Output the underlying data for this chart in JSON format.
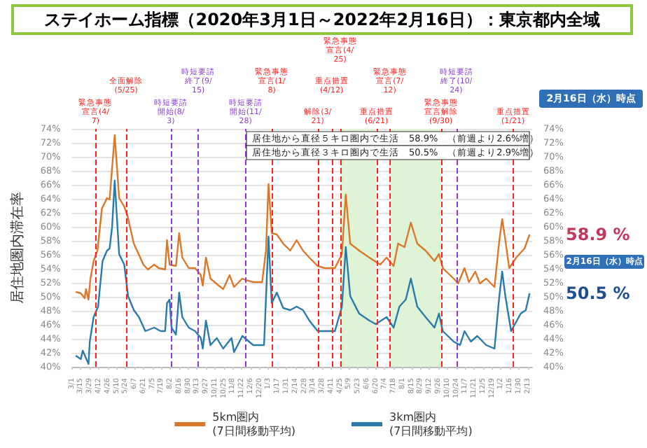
{
  "chart_data": {
    "type": "line",
    "title": "ステイホーム指標（2020年3月1日～2022年2月16日）：東京都内全域",
    "ylabel": "居住地圏内滞在率",
    "xlim": [
      "2020-03-01",
      "2022-02-20"
    ],
    "ylim": [
      40,
      74
    ],
    "yticks": [
      {
        "value": 40,
        "label": "40%"
      },
      {
        "value": 42,
        "label": "42%"
      },
      {
        "value": 44,
        "label": "44%"
      },
      {
        "value": 46,
        "label": "46%"
      },
      {
        "value": 48,
        "label": "48%"
      },
      {
        "value": 50,
        "label": "50%"
      },
      {
        "value": 52,
        "label": "52%"
      },
      {
        "value": 54,
        "label": "54%"
      },
      {
        "value": 56,
        "label": "56%"
      },
      {
        "value": 58,
        "label": "58%"
      },
      {
        "value": 60,
        "label": "60%"
      },
      {
        "value": 62,
        "label": "62%"
      },
      {
        "value": 64,
        "label": "64%"
      },
      {
        "value": 66,
        "label": "66%"
      },
      {
        "value": 68,
        "label": "68%"
      },
      {
        "value": 70,
        "label": "70%"
      },
      {
        "value": 72,
        "label": "72%"
      },
      {
        "value": 74,
        "label": "74%"
      }
    ],
    "y2lim": [
      40,
      74
    ],
    "y2ticks": [
      {
        "value": 40,
        "label": "40%"
      },
      {
        "value": 42,
        "label": "42%"
      },
      {
        "value": 44,
        "label": "44%"
      },
      {
        "value": 46,
        "label": "46%"
      },
      {
        "value": 48,
        "label": "48%"
      },
      {
        "value": 50,
        "label": "50%"
      },
      {
        "value": 52,
        "label": "52%"
      },
      {
        "value": 54,
        "label": "54%"
      },
      {
        "value": 56,
        "label": "56%"
      },
      {
        "value": 58,
        "label": "58%"
      },
      {
        "value": 60,
        "label": "60%"
      },
      {
        "value": 62,
        "label": "62%"
      },
      {
        "value": 64,
        "label": "64%"
      },
      {
        "value": 66,
        "label": "66%"
      },
      {
        "value": 68,
        "label": "68%"
      },
      {
        "value": 70,
        "label": "70%"
      },
      {
        "value": 72,
        "label": "72%"
      },
      {
        "value": 74,
        "label": "74%"
      }
    ],
    "xticks": [
      {
        "value": "2020-03-01",
        "label": "3/1"
      },
      {
        "value": "2020-03-15",
        "label": "3/15"
      },
      {
        "value": "2020-03-29",
        "label": "3/29"
      },
      {
        "value": "2020-04-12",
        "label": "4/12"
      },
      {
        "value": "2020-04-26",
        "label": "4/26"
      },
      {
        "value": "2020-05-10",
        "label": "5/10"
      },
      {
        "value": "2020-05-24",
        "label": "5/24"
      },
      {
        "value": "2020-06-07",
        "label": "6/7"
      },
      {
        "value": "2020-06-21",
        "label": "6/21"
      },
      {
        "value": "2020-07-05",
        "label": "7/5"
      },
      {
        "value": "2020-07-19",
        "label": "7/19"
      },
      {
        "value": "2020-08-02",
        "label": "8/2"
      },
      {
        "value": "2020-08-16",
        "label": "8/16"
      },
      {
        "value": "2020-08-30",
        "label": "8/30"
      },
      {
        "value": "2020-09-13",
        "label": "9/13"
      },
      {
        "value": "2020-09-27",
        "label": "9/27"
      },
      {
        "value": "2020-10-11",
        "label": "10/11"
      },
      {
        "value": "2020-10-25",
        "label": "10/25"
      },
      {
        "value": "2020-11-08",
        "label": "11/8"
      },
      {
        "value": "2020-11-22",
        "label": "11/22"
      },
      {
        "value": "2020-12-06",
        "label": "12/6"
      },
      {
        "value": "2020-12-20",
        "label": "12/20"
      },
      {
        "value": "2021-01-03",
        "label": "1/3"
      },
      {
        "value": "2021-01-17",
        "label": "1/17"
      },
      {
        "value": "2021-01-31",
        "label": "1/31"
      },
      {
        "value": "2021-02-14",
        "label": "2/14"
      },
      {
        "value": "2021-02-28",
        "label": "2/28"
      },
      {
        "value": "2021-03-14",
        "label": "3/14"
      },
      {
        "value": "2021-03-28",
        "label": "3/28"
      },
      {
        "value": "2021-04-11",
        "label": "4/11"
      },
      {
        "value": "2021-04-25",
        "label": "4/25"
      },
      {
        "value": "2021-05-09",
        "label": "5/9"
      },
      {
        "value": "2021-05-23",
        "label": "5/23"
      },
      {
        "value": "2021-06-06",
        "label": "6/6"
      },
      {
        "value": "2021-06-20",
        "label": "6/20"
      },
      {
        "value": "2021-07-04",
        "label": "7/4"
      },
      {
        "value": "2021-07-18",
        "label": "7/18"
      },
      {
        "value": "2021-08-01",
        "label": "8/1"
      },
      {
        "value": "2021-08-15",
        "label": "8/15"
      },
      {
        "value": "2021-08-29",
        "label": "8/29"
      },
      {
        "value": "2021-09-12",
        "label": "9/12"
      },
      {
        "value": "2021-09-26",
        "label": "9/26"
      },
      {
        "value": "2021-10-10",
        "label": "10/10"
      },
      {
        "value": "2021-10-24",
        "label": "10/24"
      },
      {
        "value": "2021-11-07",
        "label": "11/7"
      },
      {
        "value": "2021-11-21",
        "label": "11/21"
      },
      {
        "value": "2021-12-05",
        "label": "12/5"
      },
      {
        "value": "2021-12-19",
        "label": "12/19"
      },
      {
        "value": "2022-01-02",
        "label": "1/2"
      },
      {
        "value": "2022-01-16",
        "label": "1/16"
      },
      {
        "value": "2022-01-30",
        "label": "1/30"
      },
      {
        "value": "2022-02-13",
        "label": "2/13"
      }
    ],
    "grid": "y",
    "legend": "bottom",
    "marker": "none",
    "series": [
      {
        "name": "5km圏内\n(7日間移動平均)",
        "color": "#d9772b",
        "x": [
          "2020-03-07",
          "2020-03-15",
          "2020-03-21",
          "2020-03-23",
          "2020-03-27",
          "2020-03-30",
          "2020-04-04",
          "2020-04-10",
          "2020-04-17",
          "2020-04-25",
          "2020-04-29",
          "2020-05-01",
          "2020-05-07",
          "2020-05-14",
          "2020-05-22",
          "2020-05-27",
          "2020-06-01",
          "2020-06-06",
          "2020-06-11",
          "2020-06-21",
          "2020-06-28",
          "2020-07-08",
          "2020-07-15",
          "2020-07-25",
          "2020-07-28",
          "2020-08-01",
          "2020-08-11",
          "2020-08-16",
          "2020-08-21",
          "2020-08-31",
          "2020-09-10",
          "2020-09-19",
          "2020-09-22",
          "2020-09-27",
          "2020-10-04",
          "2020-10-17",
          "2020-10-24",
          "2020-11-03",
          "2020-11-10",
          "2020-11-23",
          "2020-11-28",
          "2020-12-10",
          "2020-12-24",
          "2020-12-30",
          "2021-01-03",
          "2021-01-08",
          "2021-01-16",
          "2021-01-26",
          "2021-02-06",
          "2021-02-16",
          "2021-02-26",
          "2021-03-08",
          "2021-03-21",
          "2021-04-01",
          "2021-04-17",
          "2021-04-28",
          "2021-05-04",
          "2021-05-11",
          "2021-05-25",
          "2021-06-10",
          "2021-06-27",
          "2021-07-07",
          "2021-07-18",
          "2021-07-25",
          "2021-08-04",
          "2021-08-14",
          "2021-08-24",
          "2021-09-06",
          "2021-09-20",
          "2021-09-27",
          "2021-10-03",
          "2021-10-20",
          "2021-10-27",
          "2021-11-06",
          "2021-11-13",
          "2021-11-23",
          "2021-11-30",
          "2021-12-10",
          "2021-12-23",
          "2021-12-30",
          "2022-01-04",
          "2022-01-09",
          "2022-01-15",
          "2022-01-26",
          "2022-02-08",
          "2022-02-16"
        ],
        "values": [
          50.7,
          50.5,
          49.8,
          51.1,
          49.6,
          52.6,
          55.1,
          56.6,
          62.6,
          64.1,
          63.9,
          66.1,
          73.1,
          64.1,
          62.9,
          61.6,
          59.6,
          57.6,
          56.6,
          54.6,
          53.9,
          54.6,
          54.1,
          53.9,
          58.1,
          54.6,
          54.4,
          59.1,
          55.6,
          54.1,
          54.1,
          53.1,
          51.6,
          55.6,
          52.6,
          51.6,
          51.1,
          53.1,
          51.4,
          52.6,
          52.4,
          52.1,
          52.1,
          56.6,
          66.1,
          59.1,
          58.9,
          57.6,
          56.6,
          58.1,
          56.6,
          55.6,
          54.4,
          54.1,
          54.1,
          56.1,
          64.6,
          57.6,
          56.6,
          55.6,
          54.6,
          55.6,
          54.4,
          57.6,
          57.1,
          60.6,
          57.6,
          56.6,
          55.1,
          56.1,
          54.1,
          52.6,
          51.9,
          54.1,
          52.1,
          53.6,
          51.9,
          52.6,
          51.4,
          57.6,
          61.1,
          58.1,
          54.1,
          55.6,
          56.9,
          58.9
        ]
      },
      {
        "name": "3km圏内\n(7日間移動平均)",
        "color": "#2a7aa8",
        "x": [
          "2020-03-07",
          "2020-03-15",
          "2020-03-18",
          "2020-03-27",
          "2020-03-29",
          "2020-04-04",
          "2020-04-11",
          "2020-04-18",
          "2020-04-25",
          "2020-04-29",
          "2020-05-03",
          "2020-05-07",
          "2020-05-14",
          "2020-05-22",
          "2020-05-28",
          "2020-06-06",
          "2020-06-14",
          "2020-06-24",
          "2020-07-08",
          "2020-07-18",
          "2020-07-25",
          "2020-07-28",
          "2020-08-01",
          "2020-08-04",
          "2020-08-11",
          "2020-08-16",
          "2020-08-21",
          "2020-08-31",
          "2020-09-10",
          "2020-09-19",
          "2020-09-22",
          "2020-09-27",
          "2020-10-04",
          "2020-10-14",
          "2020-10-24",
          "2020-11-06",
          "2020-11-10",
          "2020-11-23",
          "2020-12-10",
          "2020-12-27",
          "2021-01-03",
          "2021-01-08",
          "2021-01-16",
          "2021-01-26",
          "2021-02-06",
          "2021-02-16",
          "2021-02-26",
          "2021-03-08",
          "2021-03-21",
          "2021-04-04",
          "2021-04-17",
          "2021-04-28",
          "2021-05-04",
          "2021-05-11",
          "2021-05-25",
          "2021-06-10",
          "2021-06-20",
          "2021-07-07",
          "2021-07-18",
          "2021-07-27",
          "2021-08-06",
          "2021-08-14",
          "2021-08-24",
          "2021-09-06",
          "2021-09-20",
          "2021-09-27",
          "2021-10-03",
          "2021-10-20",
          "2021-10-30",
          "2021-11-06",
          "2021-11-16",
          "2021-11-26",
          "2021-12-10",
          "2021-12-23",
          "2021-12-30",
          "2022-01-04",
          "2022-01-09",
          "2022-01-18",
          "2022-02-02",
          "2022-02-10",
          "2022-02-16"
        ],
        "values": [
          41.6,
          41.1,
          42.3,
          40.4,
          43.6,
          47.1,
          48.6,
          55.1,
          56.6,
          56.9,
          60.0,
          66.6,
          56.1,
          54.6,
          50.1,
          48.1,
          47.1,
          45.1,
          45.6,
          45.1,
          45.1,
          49.1,
          49.6,
          45.6,
          44.6,
          50.6,
          47.1,
          45.6,
          45.1,
          44.1,
          42.6,
          46.6,
          43.1,
          44.1,
          42.6,
          44.1,
          42.1,
          44.4,
          43.1,
          43.1,
          58.6,
          49.1,
          50.6,
          48.4,
          48.1,
          48.6,
          48.1,
          46.6,
          45.1,
          45.1,
          45.1,
          48.6,
          57.1,
          50.1,
          47.6,
          46.6,
          46.1,
          47.1,
          45.6,
          48.6,
          49.6,
          52.6,
          48.6,
          47.1,
          45.6,
          47.6,
          45.1,
          43.6,
          43.1,
          45.1,
          43.6,
          44.4,
          43.1,
          42.6,
          49.6,
          53.6,
          50.1,
          45.1,
          47.6,
          48.1,
          50.5
        ]
      }
    ],
    "ref_lines": [
      {
        "axis": "x",
        "value": "2020-04-07",
        "label": "緊急事態宣言(4/7)",
        "color": "#ff2020",
        "line_style": "dashed"
      },
      {
        "axis": "x",
        "value": "2020-05-25",
        "label": "全面解除(5/25)",
        "color": "#ff2020",
        "line_style": "dashed"
      },
      {
        "axis": "x",
        "value": "2020-08-03",
        "label": "時短要請開始(8/3)",
        "color": "#8a3fd1",
        "line_style": "dashed"
      },
      {
        "axis": "x",
        "value": "2020-09-15",
        "label": "時短要請終了(9/15)",
        "color": "#8a3fd1",
        "line_style": "dashed"
      },
      {
        "axis": "x",
        "value": "2020-11-28",
        "label": "時短要請開始(11/28)",
        "color": "#8a3fd1",
        "line_style": "dashed"
      },
      {
        "axis": "x",
        "value": "2021-01-08",
        "label": "緊急事態宣言(1/8)",
        "color": "#ff2020",
        "line_style": "dashed"
      },
      {
        "axis": "x",
        "value": "2021-03-21",
        "label": "解除(3/21)",
        "color": "#ff2020",
        "line_style": "dashed"
      },
      {
        "axis": "x",
        "value": "2021-04-12",
        "label": "重点措置(4/12)",
        "color": "#ff2020",
        "line_style": "dashed"
      },
      {
        "axis": "x",
        "value": "2021-04-25",
        "label": "緊急事態宣言(4/25)",
        "color": "#ff2020",
        "line_style": "dashed"
      },
      {
        "axis": "x",
        "value": "2021-06-21",
        "label": "重点措置(6/21)",
        "color": "#ff2020",
        "line_style": "dashed"
      },
      {
        "axis": "x",
        "value": "2021-07-12",
        "label": "緊急事態宣言(7/12)",
        "color": "#ff2020",
        "line_style": "dashed"
      },
      {
        "axis": "x",
        "value": "2021-09-30",
        "label": "緊急事態宣言解除(9/30)",
        "color": "#ff2020",
        "line_style": "dashed"
      },
      {
        "axis": "x",
        "value": "2021-10-24",
        "label": "時短要請終了(10/24)",
        "color": "#8a3fd1",
        "line_style": "dashed"
      },
      {
        "axis": "x",
        "value": "2022-01-21",
        "label": "重点措置(1/21)",
        "color": "#ff2020",
        "line_style": "dashed"
      }
    ],
    "bands": [
      {
        "axis": "x",
        "from": "2021-04-25",
        "to": "2021-06-20",
        "color": "#dff3d6"
      },
      {
        "axis": "x",
        "from": "2021-07-12",
        "to": "2021-09-30",
        "color": "#dff3d6"
      }
    ],
    "annotations": [
      "2月16日（水）時点",
      "居住地から直径５キロ圏内で生活　58.9%　（前週より2.6%増）",
      "居住地から直径３キロ圏内で生活　50.5%　（前週より2.9%増）",
      {
        "text": "58.9 %",
        "x": "2022-02-16",
        "y": 58.9
      },
      "2月16日（水）時点",
      {
        "text": "50.5 %",
        "x": "2022-02-16",
        "y": 50.5
      }
    ]
  }
}
